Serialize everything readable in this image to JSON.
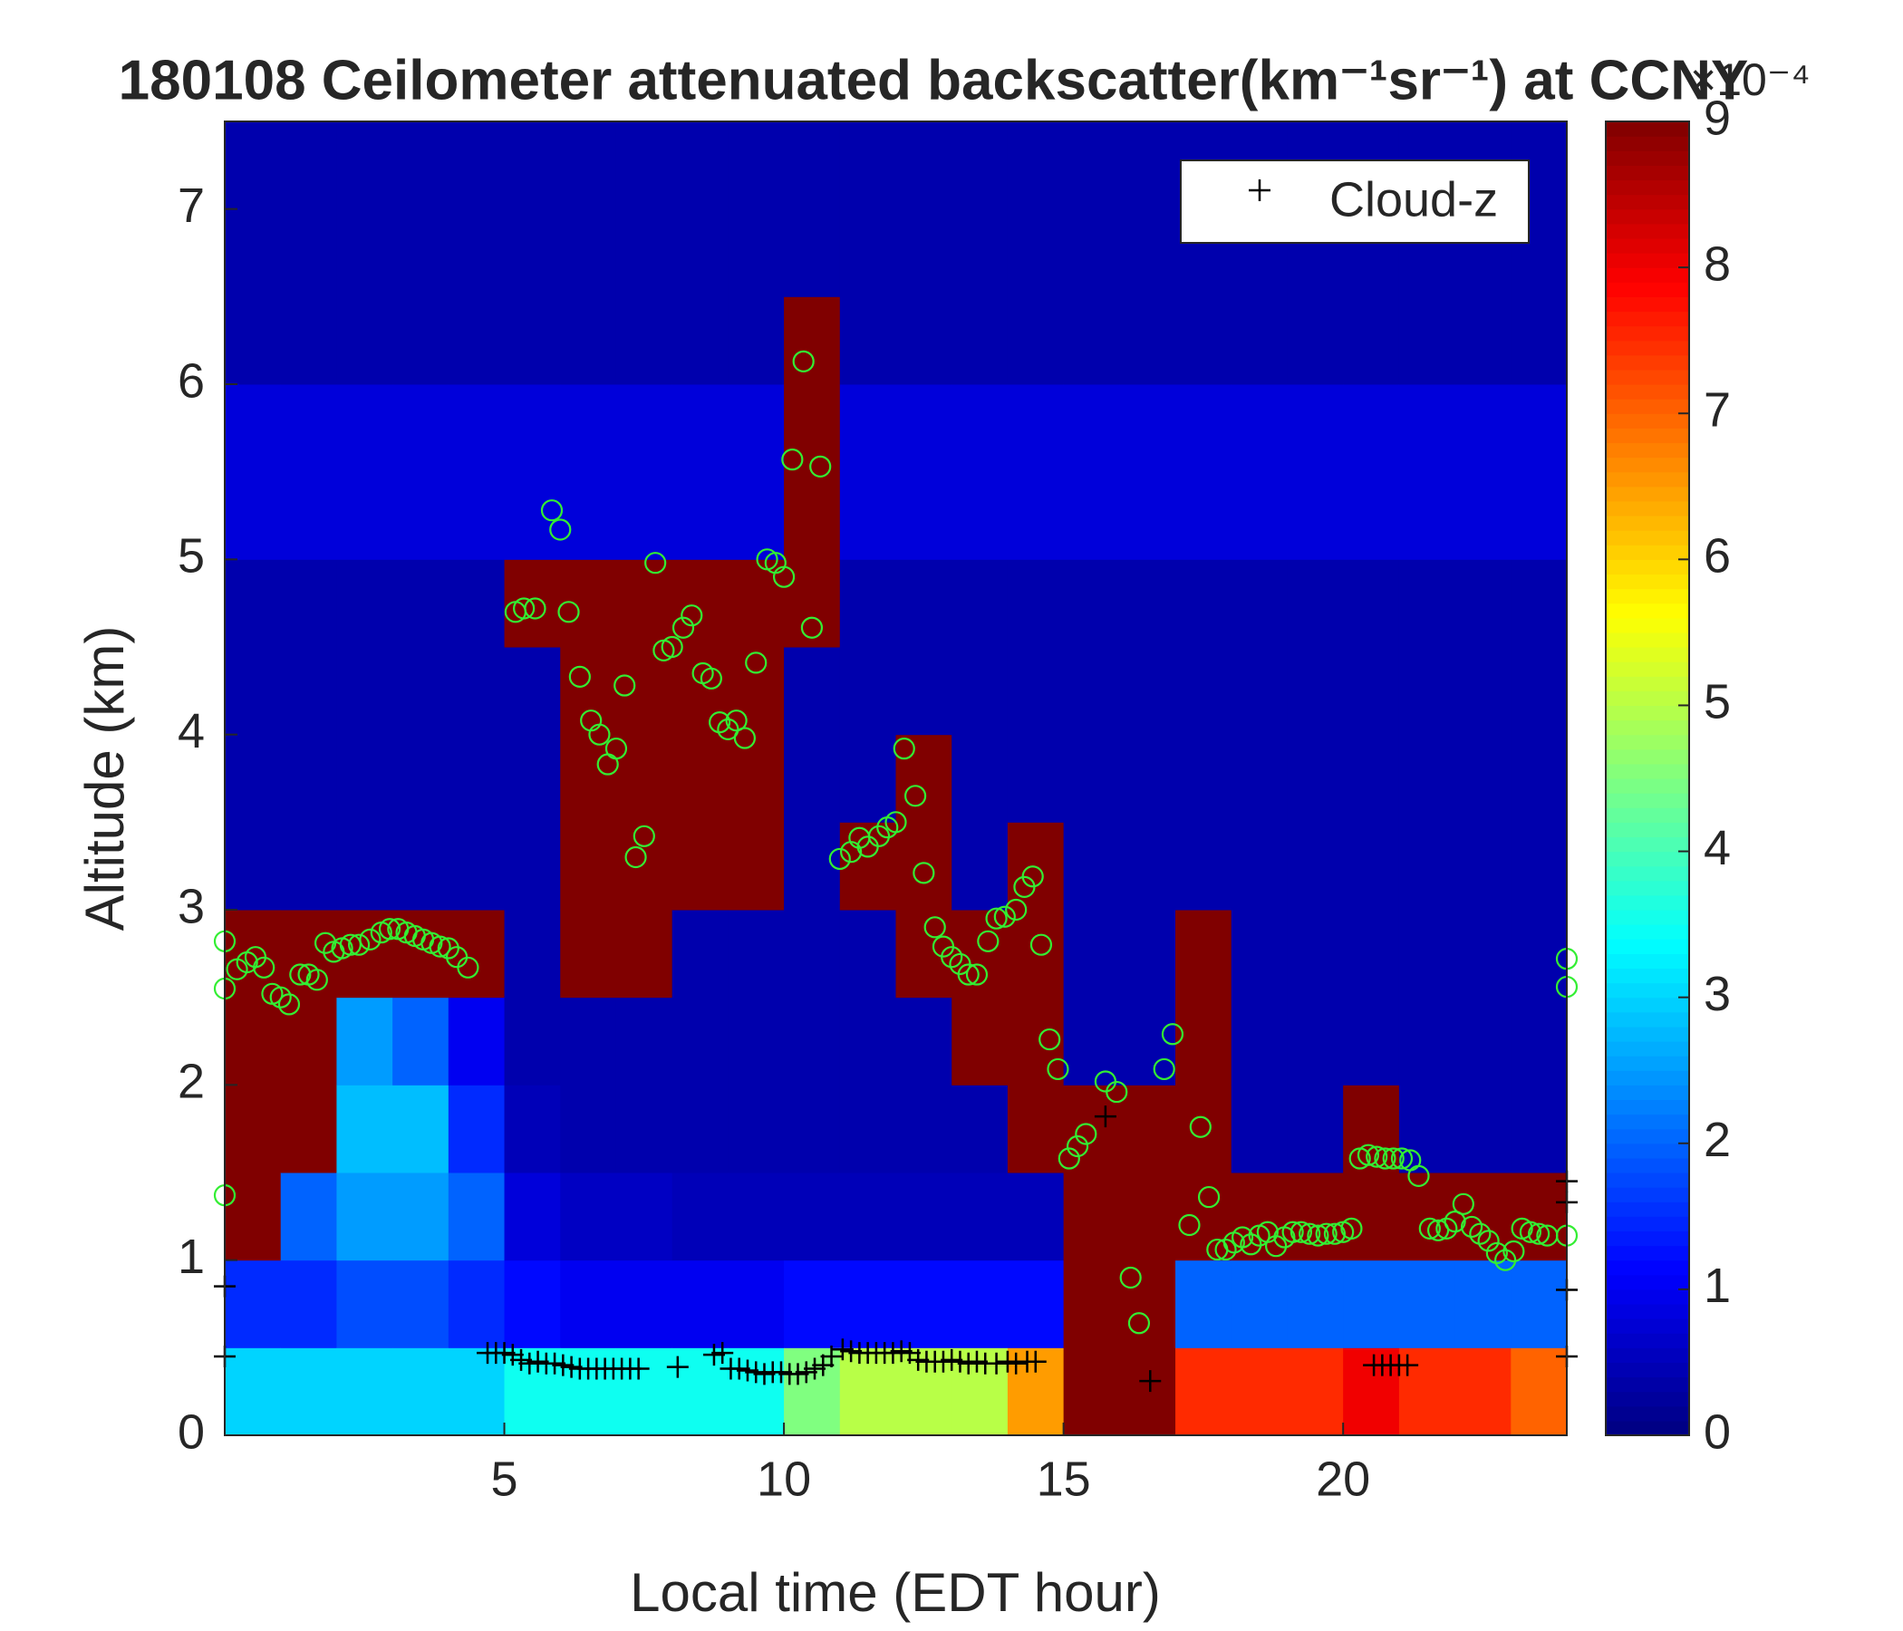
{
  "chart_data": {
    "type": "heatmap",
    "title": "180108 Ceilometer attenuated backscatter(km⁻¹sr⁻¹) at CCNY",
    "x_label": "Local time (EDT hour)",
    "y_label": "Altitude (km)",
    "xlim": [
      0,
      24
    ],
    "xticks": [
      5,
      10,
      15,
      20
    ],
    "ylim": [
      0,
      7.5
    ],
    "yticks": [
      0,
      1,
      2,
      3,
      4,
      5,
      6,
      7
    ],
    "zlim": [
      0,
      9
    ],
    "colorbar_ticks": [
      0,
      1,
      2,
      3,
      4,
      5,
      6,
      7,
      8,
      9
    ],
    "colorbar_label": "×10⁻⁴",
    "colormap": "jet",
    "z": [
      [
        3,
        1.5,
        9,
        9,
        9,
        9,
        0.4,
        0.4,
        0.4,
        0.4,
        0.8,
        0.8,
        0.4,
        0.4,
        0.4
      ],
      [
        3,
        1.5,
        2,
        9,
        9,
        9,
        0.4,
        0.4,
        0.4,
        0.4,
        0.8,
        0.8,
        0.4,
        0.4,
        0.4
      ],
      [
        3,
        1.8,
        2.5,
        2.8,
        2.5,
        9,
        0.4,
        0.4,
        0.4,
        0.4,
        0.8,
        0.8,
        0.4,
        0.4,
        0.4
      ],
      [
        3,
        1.8,
        2.5,
        2.8,
        2,
        9,
        0.4,
        0.4,
        0.4,
        0.4,
        0.8,
        0.8,
        0.4,
        0.4,
        0.4
      ],
      [
        3,
        1.5,
        2,
        1.5,
        1,
        9,
        0.4,
        0.4,
        0.4,
        0.4,
        0.8,
        0.8,
        0.4,
        0.4,
        0.4
      ],
      [
        3.5,
        1.2,
        0.8,
        0.5,
        0.4,
        0.4,
        0.4,
        0.4,
        0.4,
        9,
        0.8,
        0.8,
        0.4,
        0.4,
        0.4
      ],
      [
        3.5,
        1,
        0.6,
        0.4,
        0.4,
        9,
        9,
        9,
        9,
        9,
        0.8,
        0.8,
        0.4,
        0.4,
        0.4
      ],
      [
        3.5,
        1,
        0.6,
        0.4,
        0.4,
        9,
        9,
        9,
        9,
        9,
        0.8,
        0.8,
        0.4,
        0.4,
        0.4
      ],
      [
        3.5,
        1,
        0.5,
        0.4,
        0.4,
        0.4,
        9,
        9,
        9,
        9,
        0.8,
        0.8,
        0.4,
        0.4,
        0.4
      ],
      [
        3.5,
        1,
        0.5,
        0.4,
        0.4,
        0.4,
        9,
        9,
        9,
        9,
        0.8,
        0.8,
        0.4,
        0.4,
        0.4
      ],
      [
        4.5,
        1.2,
        0.5,
        0.4,
        0.4,
        0.4,
        0.4,
        0.4,
        0.4,
        9,
        9,
        9,
        9,
        0.4,
        0.4
      ],
      [
        5,
        1.2,
        0.5,
        0.4,
        0.4,
        0.4,
        9,
        0.4,
        0.4,
        0.4,
        0.8,
        0.8,
        0.4,
        0.4,
        0.4
      ],
      [
        5,
        1.2,
        0.5,
        0.4,
        0.4,
        9,
        9,
        9,
        0.4,
        0.4,
        0.8,
        0.8,
        0.4,
        0.4,
        0.4
      ],
      [
        5,
        1.2,
        0.5,
        0.4,
        9,
        9,
        0.4,
        0.4,
        0.4,
        0.4,
        0.8,
        0.8,
        0.4,
        0.4,
        0.4
      ],
      [
        6.5,
        1.2,
        0.5,
        9,
        9,
        9,
        9,
        0.4,
        0.4,
        0.4,
        0.8,
        0.8,
        0.4,
        0.4,
        0.4
      ],
      [
        9,
        9,
        9,
        9,
        0.4,
        0.4,
        0.4,
        0.4,
        0.4,
        0.4,
        0.8,
        0.8,
        0.4,
        0.4,
        0.4
      ],
      [
        9,
        9,
        9,
        9,
        0.4,
        0.4,
        0.4,
        0.4,
        0.4,
        0.4,
        0.8,
        0.8,
        0.4,
        0.4,
        0.4
      ],
      [
        7.5,
        2,
        9,
        9,
        9,
        9,
        0.4,
        0.4,
        0.4,
        0.4,
        0.8,
        0.8,
        0.4,
        0.4,
        0.4
      ],
      [
        7.5,
        2,
        9,
        0.4,
        0.4,
        0.4,
        0.4,
        0.4,
        0.4,
        0.4,
        0.8,
        0.8,
        0.4,
        0.4,
        0.4
      ],
      [
        7.5,
        2,
        9,
        0.4,
        0.4,
        0.4,
        0.4,
        0.4,
        0.4,
        0.4,
        0.8,
        0.8,
        0.4,
        0.4,
        0.4
      ],
      [
        8,
        2,
        9,
        9,
        0.4,
        0.4,
        0.4,
        0.4,
        0.4,
        0.4,
        0.8,
        0.8,
        0.4,
        0.4,
        0.4
      ],
      [
        7.5,
        2,
        9,
        0.4,
        0.4,
        0.4,
        0.4,
        0.4,
        0.4,
        0.4,
        0.8,
        0.8,
        0.4,
        0.4,
        0.4
      ],
      [
        7.5,
        2,
        9,
        0.4,
        0.4,
        0.4,
        0.4,
        0.4,
        0.4,
        0.4,
        0.8,
        0.8,
        0.4,
        0.4,
        0.4
      ],
      [
        7,
        2,
        9,
        0.4,
        0.4,
        0.4,
        0.4,
        0.4,
        0.4,
        0.4,
        0.8,
        0.8,
        0.4,
        0.4,
        0.4
      ]
    ],
    "series": [
      {
        "color": "#33ee33",
        "marker": "o",
        "x": [
          0,
          0,
          0,
          0.22,
          0.4,
          0.55,
          0.7,
          0.85,
          1.0,
          1.15,
          1.35,
          1.5,
          1.65,
          1.8,
          1.95,
          2.1,
          2.25,
          2.4,
          2.6,
          2.8,
          2.95,
          3.1,
          3.25,
          3.4,
          3.55,
          3.7,
          3.85,
          4.0,
          4.15,
          4.35,
          5.2,
          5.35,
          5.55,
          5.85,
          6.0,
          6.15,
          6.35,
          6.55,
          6.7,
          6.85,
          7.0,
          7.15,
          7.35,
          7.5,
          7.7,
          7.85,
          8.0,
          8.2,
          8.35,
          8.55,
          8.7,
          8.85,
          9.0,
          9.15,
          9.3,
          9.5,
          9.7,
          9.85,
          10.0,
          10.15,
          10.35,
          10.5,
          10.65,
          11.0,
          11.2,
          11.35,
          11.5,
          11.7,
          11.85,
          12.0,
          12.15,
          12.35,
          12.5,
          12.7,
          12.85,
          13.0,
          13.15,
          13.3,
          13.45,
          13.65,
          13.8,
          13.95,
          14.15,
          14.3,
          14.45,
          14.6,
          14.75,
          14.9,
          15.1,
          15.25,
          15.4,
          15.75,
          15.95,
          16.2,
          16.35,
          16.8,
          16.95,
          17.25,
          17.45,
          17.6,
          17.75,
          17.9,
          18.05,
          18.2,
          18.35,
          18.5,
          18.65,
          18.8,
          18.95,
          19.1,
          19.25,
          19.4,
          19.55,
          19.7,
          19.85,
          20.0,
          20.15,
          20.3,
          20.45,
          20.6,
          20.75,
          20.9,
          21.05,
          21.2,
          21.35,
          21.55,
          21.7,
          21.85,
          22.0,
          22.15,
          22.3,
          22.45,
          22.6,
          22.75,
          22.9,
          23.05,
          23.2,
          23.35,
          23.5,
          23.65,
          24.0,
          24.0,
          24.0
        ],
        "values": [
          1.37,
          2.82,
          2.55,
          2.66,
          2.7,
          2.73,
          2.67,
          2.52,
          2.5,
          2.46,
          2.63,
          2.63,
          2.6,
          2.81,
          2.76,
          2.78,
          2.8,
          2.8,
          2.83,
          2.87,
          2.89,
          2.89,
          2.87,
          2.85,
          2.83,
          2.81,
          2.79,
          2.78,
          2.73,
          2.67,
          4.7,
          4.72,
          4.72,
          5.28,
          5.17,
          4.7,
          4.33,
          4.08,
          4.0,
          3.83,
          3.92,
          4.28,
          3.3,
          3.42,
          4.98,
          4.48,
          4.5,
          4.61,
          4.68,
          4.35,
          4.32,
          4.07,
          4.03,
          4.08,
          3.98,
          4.41,
          5.0,
          4.98,
          4.9,
          5.57,
          6.13,
          4.61,
          5.53,
          3.29,
          3.33,
          3.41,
          3.36,
          3.42,
          3.47,
          3.5,
          3.92,
          3.65,
          3.21,
          2.9,
          2.79,
          2.73,
          2.69,
          2.63,
          2.63,
          2.82,
          2.95,
          2.96,
          3.0,
          3.13,
          3.19,
          2.8,
          2.26,
          2.09,
          1.58,
          1.65,
          1.72,
          2.02,
          1.96,
          0.9,
          0.64,
          2.09,
          2.29,
          1.2,
          1.76,
          1.36,
          1.06,
          1.06,
          1.1,
          1.13,
          1.09,
          1.14,
          1.16,
          1.08,
          1.13,
          1.16,
          1.16,
          1.15,
          1.14,
          1.15,
          1.15,
          1.16,
          1.18,
          1.58,
          1.6,
          1.59,
          1.58,
          1.58,
          1.58,
          1.57,
          1.48,
          1.18,
          1.17,
          1.18,
          1.22,
          1.32,
          1.19,
          1.15,
          1.11,
          1.04,
          1.0,
          1.05,
          1.18,
          1.16,
          1.15,
          1.14,
          2.72,
          2.56,
          1.14
        ]
      },
      {
        "name": "Cloud-z",
        "color": "#000000",
        "marker": "+",
        "x": [
          4.7,
          4.85,
          5.0,
          5.15,
          5.3,
          5.45,
          5.6,
          5.75,
          5.9,
          6.05,
          6.2,
          6.35,
          6.5,
          6.65,
          6.8,
          6.95,
          7.1,
          7.25,
          7.4,
          8.1,
          8.75,
          8.9,
          9.05,
          9.2,
          9.35,
          9.5,
          9.65,
          9.8,
          9.95,
          10.1,
          10.25,
          10.4,
          10.55,
          10.7,
          10.85,
          11.05,
          11.2,
          11.35,
          11.5,
          11.65,
          11.8,
          11.95,
          12.1,
          12.25,
          12.4,
          12.55,
          12.7,
          12.85,
          13.0,
          13.15,
          13.3,
          13.45,
          13.6,
          13.8,
          14.0,
          14.15,
          14.35,
          14.5,
          15.75,
          16.55,
          20.55,
          20.7,
          20.85,
          21.0,
          21.15,
          0,
          0,
          24,
          24,
          24,
          24
        ],
        "values": [
          0.47,
          0.47,
          0.47,
          0.46,
          0.43,
          0.41,
          0.42,
          0.41,
          0.41,
          0.4,
          0.39,
          0.38,
          0.38,
          0.38,
          0.38,
          0.38,
          0.38,
          0.38,
          0.38,
          0.39,
          0.46,
          0.47,
          0.38,
          0.38,
          0.37,
          0.36,
          0.35,
          0.36,
          0.36,
          0.35,
          0.35,
          0.36,
          0.38,
          0.4,
          0.45,
          0.49,
          0.48,
          0.47,
          0.47,
          0.47,
          0.47,
          0.47,
          0.48,
          0.47,
          0.43,
          0.42,
          0.42,
          0.42,
          0.43,
          0.42,
          0.41,
          0.42,
          0.41,
          0.41,
          0.42,
          0.41,
          0.42,
          0.42,
          1.82,
          0.31,
          0.4,
          0.4,
          0.4,
          0.4,
          0.4,
          0.85,
          0.45,
          1.45,
          1.33,
          0.83,
          0.45
        ]
      }
    ],
    "legend": "upper right"
  }
}
